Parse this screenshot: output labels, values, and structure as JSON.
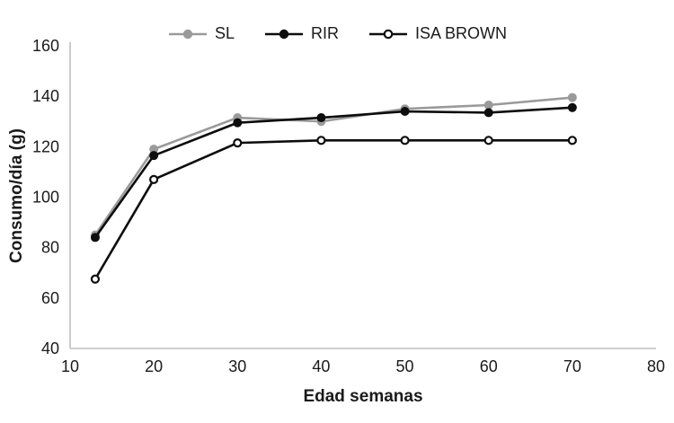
{
  "chart": {
    "background": "#ffffff",
    "axis_line_color": "#bfbfbf",
    "text_color": "#1a1a1a"
  },
  "chart_data": {
    "type": "line",
    "title": "",
    "xlabel": "Edad semanas",
    "ylabel": "Consumo/día (g)",
    "x": [
      13,
      20,
      30,
      40,
      50,
      60,
      70
    ],
    "x_ticks": [
      10,
      20,
      30,
      40,
      50,
      60,
      70,
      80
    ],
    "y_ticks": [
      40,
      60,
      80,
      100,
      120,
      140,
      160
    ],
    "xlim": [
      10,
      80
    ],
    "ylim": [
      40,
      160
    ],
    "grid": false,
    "legend_position": "top-center",
    "series": [
      {
        "name": "SL",
        "color": "#9a9a9a",
        "marker": "filled-circle",
        "values": [
          85,
          119,
          131.5,
          130,
          135,
          136.5,
          139.5
        ]
      },
      {
        "name": "RIR",
        "color": "#0d0d0d",
        "marker": "filled-circle",
        "values": [
          84,
          116.5,
          129.5,
          131.5,
          134,
          133.5,
          135.5
        ]
      },
      {
        "name": "ISA BROWN",
        "color": "#0d0d0d",
        "marker": "open-circle",
        "values": [
          67.5,
          107,
          121.5,
          122.5,
          122.5,
          122.5,
          122.5
        ]
      }
    ]
  }
}
